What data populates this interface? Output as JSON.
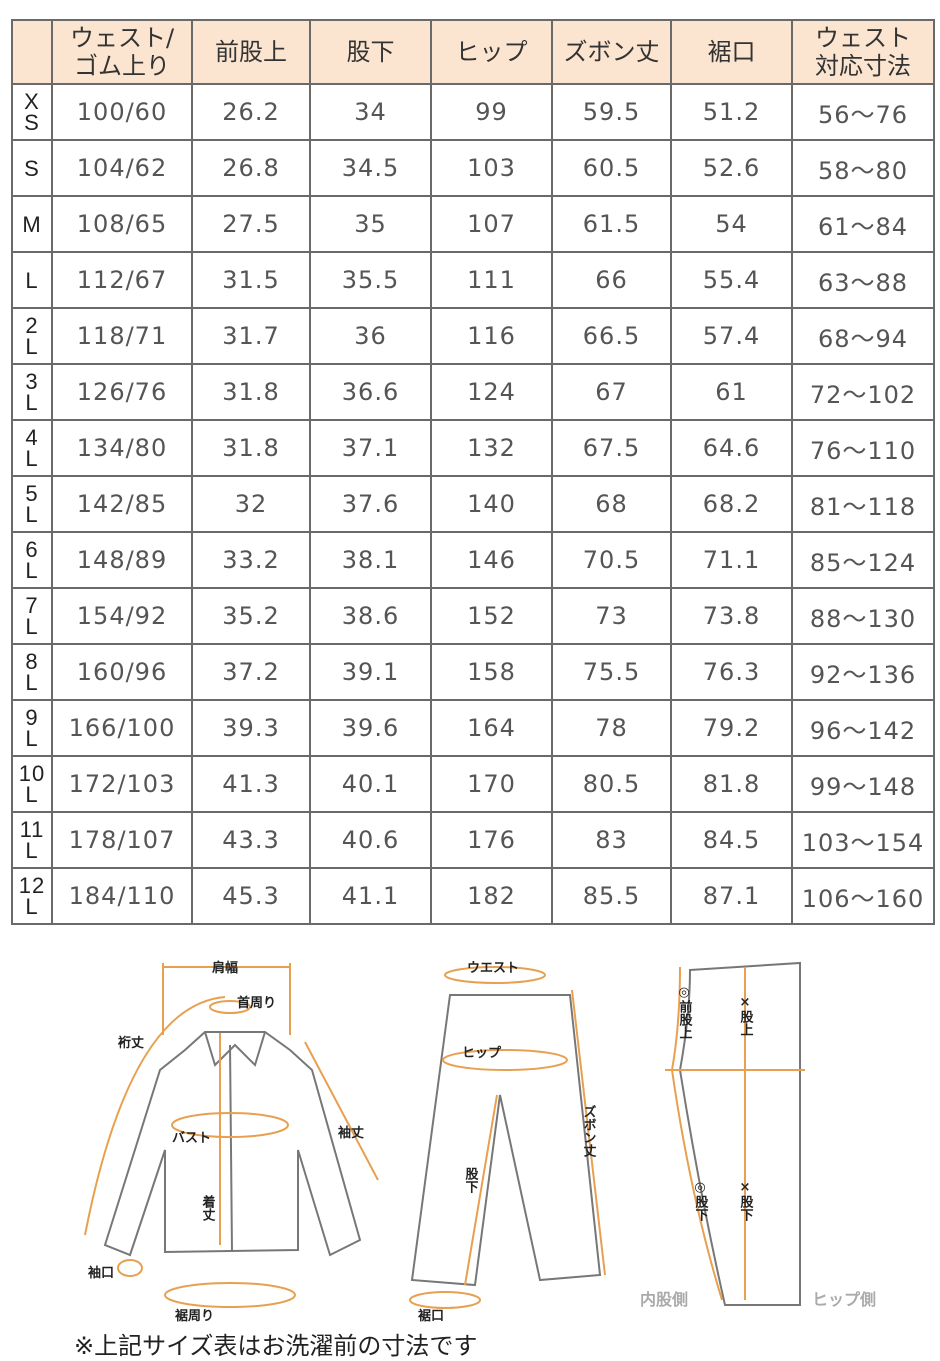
{
  "table": {
    "headers": [
      "",
      "ウェスト/\nゴム上り",
      "前股上",
      "股下",
      "ヒップ",
      "ズボン丈",
      "裾口",
      "ウェスト\n対応寸法"
    ],
    "rows": [
      [
        "X\nS",
        "100/60",
        "26.2",
        "34",
        "99",
        "59.5",
        "51.2",
        "56～76"
      ],
      [
        "S",
        "104/62",
        "26.8",
        "34.5",
        "103",
        "60.5",
        "52.6",
        "58～80"
      ],
      [
        "M",
        "108/65",
        "27.5",
        "35",
        "107",
        "61.5",
        "54",
        "61～84"
      ],
      [
        "L",
        "112/67",
        "31.5",
        "35.5",
        "111",
        "66",
        "55.4",
        "63～88"
      ],
      [
        "2\nL",
        "118/71",
        "31.7",
        "36",
        "116",
        "66.5",
        "57.4",
        "68～94"
      ],
      [
        "3\nL",
        "126/76",
        "31.8",
        "36.6",
        "124",
        "67",
        "61",
        "72～102"
      ],
      [
        "4\nL",
        "134/80",
        "31.8",
        "37.1",
        "132",
        "67.5",
        "64.6",
        "76～110"
      ],
      [
        "5\nL",
        "142/85",
        "32",
        "37.6",
        "140",
        "68",
        "68.2",
        "81～118"
      ],
      [
        "6\nL",
        "148/89",
        "33.2",
        "38.1",
        "146",
        "70.5",
        "71.1",
        "85～124"
      ],
      [
        "7\nL",
        "154/92",
        "35.2",
        "38.6",
        "152",
        "73",
        "73.8",
        "88～130"
      ],
      [
        "8\nL",
        "160/96",
        "37.2",
        "39.1",
        "158",
        "75.5",
        "76.3",
        "92～136"
      ],
      [
        "9\nL",
        "166/100",
        "39.3",
        "39.6",
        "164",
        "78",
        "79.2",
        "96～142"
      ],
      [
        "10\nL",
        "172/103",
        "41.3",
        "40.1",
        "170",
        "80.5",
        "81.8",
        "99～148"
      ],
      [
        "11\nL",
        "178/107",
        "43.3",
        "40.6",
        "176",
        "83",
        "84.5",
        "103～154"
      ],
      [
        "12\nL",
        "184/110",
        "45.3",
        "41.1",
        "182",
        "85.5",
        "87.1",
        "106～160"
      ]
    ]
  },
  "diagram": {
    "shirt": {
      "shoulder": "肩幅",
      "neck": "首周り",
      "yuki": "裄丈",
      "sleeve": "袖丈",
      "bust": "バスト",
      "length": "着丈",
      "cuff": "袖口",
      "hem": "裾周り"
    },
    "pants": {
      "waist": "ウエスト",
      "hip": "ヒップ",
      "pants_length": "ズボン丈",
      "inseam": "股下",
      "hem": "裾口"
    },
    "side": {
      "front_rise": "◎前股上",
      "rise": "×股上",
      "inseam_o": "◎股下",
      "inseam_x": "×股下",
      "inner": "内股側",
      "hip_side": "ヒップ側"
    },
    "accent_color": "#e8a050"
  },
  "footnote": "※上記サイズ表はお洗濯前の寸法です"
}
